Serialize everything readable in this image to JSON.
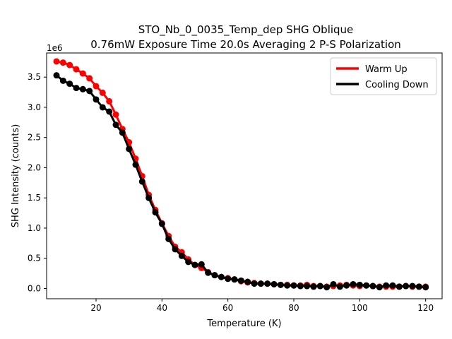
{
  "chart_data": {
    "type": "line",
    "title_line1": "STO_Nb_0_0035_Temp_dep SHG Oblique",
    "title_line2": "0.76mW Exposure Time 20.0s Averaging 2 P-S  Polarization",
    "xlabel": "Temperature (K)",
    "ylabel": "SHG Intensity (counts)",
    "y_offset_label": "1e6",
    "xlim": [
      5,
      125
    ],
    "ylim": [
      -0.17,
      3.9
    ],
    "x_ticks": [
      20,
      40,
      60,
      80,
      100,
      120
    ],
    "y_ticks": [
      0.0,
      0.5,
      1.0,
      1.5,
      2.0,
      2.5,
      3.0,
      3.5
    ],
    "y_tick_labels": [
      "0.0",
      "0.5",
      "1.0",
      "1.5",
      "2.0",
      "2.5",
      "3.0",
      "3.5"
    ],
    "legend": {
      "position": "top-right",
      "entries": [
        "Warm Up",
        "Cooling Down"
      ]
    },
    "x": [
      8,
      10,
      12,
      14,
      16,
      18,
      20,
      22,
      24,
      26,
      28,
      30,
      32,
      34,
      36,
      38,
      40,
      42,
      44,
      46,
      48,
      50,
      52,
      54,
      56,
      58,
      60,
      62,
      64,
      66,
      68,
      70,
      72,
      74,
      76,
      78,
      80,
      82,
      84,
      86,
      88,
      90,
      92,
      94,
      96,
      98,
      100,
      102,
      104,
      106,
      108,
      110,
      112,
      114,
      116,
      118,
      120
    ],
    "series": [
      {
        "name": "Warm Up",
        "color": "#ff0000",
        "values": [
          3.76,
          3.74,
          3.7,
          3.63,
          3.56,
          3.48,
          3.35,
          3.24,
          3.1,
          2.88,
          2.64,
          2.42,
          2.15,
          1.86,
          1.55,
          1.3,
          1.08,
          0.87,
          0.69,
          0.6,
          0.48,
          0.39,
          0.34,
          0.27,
          0.22,
          0.19,
          0.17,
          0.15,
          0.12,
          0.1,
          0.09,
          0.08,
          0.08,
          0.07,
          0.06,
          0.06,
          0.05,
          0.05,
          0.06,
          0.04,
          0.04,
          0.03,
          0.04,
          0.05,
          0.06,
          0.05,
          0.04,
          0.05,
          0.04,
          0.03,
          0.03,
          0.03,
          0.03,
          0.04,
          0.03,
          0.03,
          0.03
        ]
      },
      {
        "name": "Cooling Down",
        "color": "#000000",
        "values": [
          3.53,
          3.44,
          3.39,
          3.32,
          3.3,
          3.27,
          3.13,
          3.0,
          2.93,
          2.71,
          2.58,
          2.31,
          2.05,
          1.77,
          1.5,
          1.26,
          1.07,
          0.82,
          0.65,
          0.54,
          0.44,
          0.39,
          0.4,
          0.26,
          0.22,
          0.19,
          0.16,
          0.15,
          0.13,
          0.11,
          0.08,
          0.08,
          0.08,
          0.07,
          0.06,
          0.05,
          0.05,
          0.04,
          0.04,
          0.03,
          0.04,
          0.02,
          0.07,
          0.03,
          0.05,
          0.07,
          0.06,
          0.05,
          0.04,
          0.02,
          0.05,
          0.05,
          0.03,
          0.04,
          0.04,
          0.03,
          0.02
        ]
      }
    ]
  }
}
